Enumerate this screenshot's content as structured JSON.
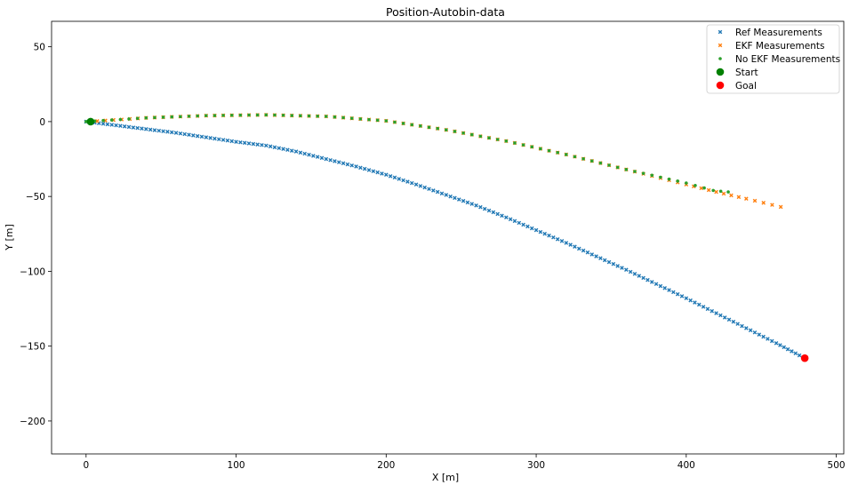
{
  "chart_data": {
    "type": "scatter",
    "title": "Position-Autobin-data",
    "xlabel": "X [m]",
    "ylabel": "Y [m]",
    "xlim": [
      -23,
      505
    ],
    "ylim": [
      -222,
      67
    ],
    "xticks": [
      0,
      100,
      200,
      300,
      400,
      500
    ],
    "yticks": [
      50,
      0,
      -50,
      -100,
      -150,
      -200
    ],
    "grid": false,
    "legend_position": "top-right",
    "series": [
      {
        "name": "Ref Measurements",
        "marker": "x",
        "color": "#1f77b4",
        "points": [
          [
            0,
            0
          ],
          [
            20,
            -2.5
          ],
          [
            40,
            -5
          ],
          [
            60,
            -7.5
          ],
          [
            80,
            -10.5
          ],
          [
            100,
            -13.5
          ],
          [
            120,
            -16
          ],
          [
            140,
            -20
          ],
          [
            160,
            -25
          ],
          [
            180,
            -30
          ],
          [
            200,
            -35.5
          ],
          [
            220,
            -42
          ],
          [
            240,
            -49
          ],
          [
            260,
            -56
          ],
          [
            280,
            -64
          ],
          [
            300,
            -72.5
          ],
          [
            320,
            -81
          ],
          [
            340,
            -90
          ],
          [
            360,
            -99
          ],
          [
            380,
            -108.5
          ],
          [
            400,
            -118
          ],
          [
            420,
            -128
          ],
          [
            440,
            -138
          ],
          [
            460,
            -148
          ],
          [
            478,
            -157.5
          ]
        ]
      },
      {
        "name": "EKF Measurements",
        "marker": "x",
        "color": "#ff7f0e",
        "points": [
          [
            2,
            0
          ],
          [
            40,
            2.5
          ],
          [
            80,
            4
          ],
          [
            120,
            4.5
          ],
          [
            160,
            3.5
          ],
          [
            200,
            0.5
          ],
          [
            240,
            -5.5
          ],
          [
            280,
            -13
          ],
          [
            320,
            -22
          ],
          [
            360,
            -32
          ],
          [
            400,
            -42
          ],
          [
            420,
            -47
          ],
          [
            440,
            -51.5
          ],
          [
            463,
            -57
          ]
        ]
      },
      {
        "name": "No EKF Measurements",
        "marker": "o",
        "color": "#2ca02c",
        "points": [
          [
            0,
            0
          ],
          [
            40,
            2.5
          ],
          [
            80,
            4
          ],
          [
            120,
            4.5
          ],
          [
            160,
            3.5
          ],
          [
            200,
            0.5
          ],
          [
            240,
            -5.5
          ],
          [
            280,
            -13
          ],
          [
            320,
            -22
          ],
          [
            360,
            -32
          ],
          [
            400,
            -41
          ],
          [
            418,
            -46
          ],
          [
            428,
            -47
          ]
        ]
      },
      {
        "name": "Start",
        "marker": "o-large",
        "color": "#008000",
        "points": [
          [
            3,
            0
          ]
        ]
      },
      {
        "name": "Goal",
        "marker": "o-large",
        "color": "#ff0000",
        "points": [
          [
            479,
            -158
          ]
        ]
      }
    ]
  }
}
